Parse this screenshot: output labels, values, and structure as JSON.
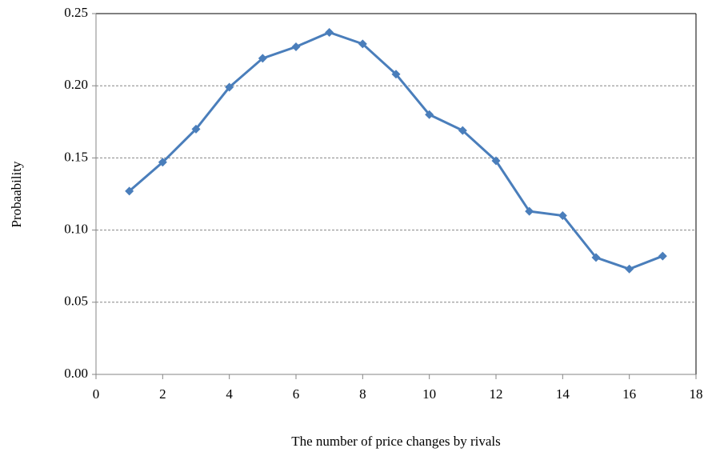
{
  "chart_data": {
    "type": "line",
    "x_label": "The number of price changes by rivals",
    "y_label": "Probaability",
    "x": [
      1,
      2,
      3,
      4,
      5,
      6,
      7,
      8,
      9,
      10,
      11,
      12,
      13,
      14,
      15,
      16,
      17
    ],
    "series": [
      {
        "name": "Probability",
        "color": "#4a7ebb",
        "values": [
          0.127,
          0.147,
          0.17,
          0.199,
          0.219,
          0.227,
          0.237,
          0.229,
          0.208,
          0.18,
          0.169,
          0.148,
          0.113,
          0.11,
          0.081,
          0.073,
          0.082
        ]
      }
    ],
    "xlim": [
      0,
      18
    ],
    "xticks": [
      0,
      2,
      4,
      6,
      8,
      10,
      12,
      14,
      16,
      18
    ],
    "ylim": [
      0,
      0.25
    ],
    "yticks": [
      {
        "value": 0,
        "label": "0.00"
      },
      0.05,
      {
        "value": 0.1,
        "label": "0.10"
      },
      0.15,
      {
        "value": 0.2,
        "label": "0.20"
      },
      0.25
    ],
    "grid": true
  }
}
